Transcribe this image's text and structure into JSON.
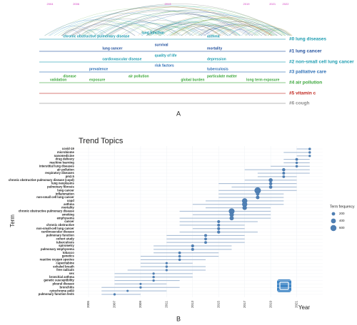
{
  "panels": [
    "A",
    "B"
  ],
  "chart_data": [
    {
      "type": "timeline",
      "xlim": [
        2004,
        2022
      ],
      "xticks": [
        2004,
        2006,
        2013,
        2019,
        2021,
        2022
      ],
      "clusters": [
        {
          "name": "#0 lung diseases",
          "color": "#1a9bb0",
          "keywords": [
            {
              "label": "chronic obstructive pulmonary disease",
              "year": 2005
            },
            {
              "label": "lung function",
              "year": 2011
            },
            {
              "label": "asthma",
              "year": 2016
            }
          ]
        },
        {
          "name": "#1 lung cancer",
          "color": "#1f4e9c",
          "keywords": [
            {
              "label": "lung cancer",
              "year": 2008
            },
            {
              "label": "survival",
              "year": 2012
            },
            {
              "label": "mortality",
              "year": 2016
            }
          ]
        },
        {
          "name": "#2 non-small cell lung cancer",
          "color": "#1a9bb0",
          "keywords": [
            {
              "label": "cardiovascular disease",
              "year": 2008
            },
            {
              "label": "quality of life",
              "year": 2012
            },
            {
              "label": "depression",
              "year": 2016
            }
          ]
        },
        {
          "name": "#3 palliative care",
          "color": "#2a6db5",
          "keywords": [
            {
              "label": "prevalence",
              "year": 2007
            },
            {
              "label": "risk factors",
              "year": 2012
            },
            {
              "label": "tuberculosis",
              "year": 2016
            }
          ]
        },
        {
          "name": "#4 air pollution",
          "color": "#3aa63a",
          "keywords": [
            {
              "label": "validation",
              "year": 2004
            },
            {
              "label": "disease",
              "year": 2005
            },
            {
              "label": "exposure",
              "year": 2007
            },
            {
              "label": "air pollution",
              "year": 2010
            },
            {
              "label": "global burden",
              "year": 2014
            },
            {
              "label": "particulate matter",
              "year": 2016
            },
            {
              "label": "long term exposure",
              "year": 2019
            }
          ]
        },
        {
          "name": "#5 vitamin c",
          "color": "#c0271f",
          "keywords": []
        },
        {
          "name": "#6 cough",
          "color": "#8c8c8c",
          "keywords": []
        }
      ]
    },
    {
      "type": "trend",
      "title": "Trend Topics",
      "x_label": "Year",
      "y_label": "Term",
      "xlim": [
        2004,
        2023
      ],
      "xticks": [
        2005,
        2007,
        2009,
        2011,
        2013,
        2015,
        2017,
        2019,
        2021
      ],
      "color": "#4f7fb3",
      "line_color": "#9fb6d0",
      "legend_title": "Term frequency",
      "legend_sizes": [
        200,
        400,
        600
      ],
      "categories": [
        "covid-19",
        "microbiome",
        "nanomedicine",
        "drug delivery",
        "machine learning",
        "interstitial lung diseases",
        "air pollution",
        "respiratory diseases",
        "pm2.5",
        "chronic obstructive pulmonary disease (copd)",
        "lung neoplasms",
        "pulmonary fibrosis",
        "lung cancer",
        "inflammation",
        "non-small cell lung cancer",
        "copd",
        "asthma",
        "mortality",
        "chronic obstructive pulmonary disease",
        "smoking",
        "emphysema",
        "cancer",
        "chronic obstructive",
        "non-small-cell lung cancer",
        "cardiovascular disease",
        "pulmonary function",
        "cohort study",
        "tuberculosis",
        "spirometry",
        "pulmonary emphysema",
        "tobacco",
        "genetics",
        "reactive oxygen species",
        "capecitabine",
        "exhaled breath",
        "free radicals",
        "sex",
        "bronchial asthma",
        "genetic susceptibility",
        "pleural disease",
        "bronchitis",
        "cytochrome p450",
        "pulmonary function tests"
      ],
      "median": [
        2022,
        2022,
        2022,
        2021,
        2021,
        2021,
        2020,
        2020,
        2020,
        2019,
        2019,
        2019,
        2018,
        2018,
        2018,
        2017,
        2017,
        2017,
        2016,
        2016,
        2016,
        2015,
        2015,
        2015,
        2015,
        2014,
        2014,
        2014,
        2013,
        2013,
        2012,
        2012,
        2012,
        2011,
        2011,
        2011,
        2010,
        2010,
        2010,
        2009,
        2009,
        2008,
        2007
      ],
      "q1": [
        2021,
        2020,
        2021,
        2020,
        2020,
        2019,
        2017,
        2018,
        2018,
        2017,
        2015,
        2016,
        2015,
        2015,
        2015,
        2014,
        2013,
        2014,
        2012,
        2013,
        2012,
        2012,
        2012,
        2013,
        2012,
        2011,
        2011,
        2011,
        2010,
        2010,
        2010,
        2009,
        2009,
        2009,
        2009,
        2008,
        2007,
        2007,
        2007,
        2007,
        2006,
        2006,
        2006
      ],
      "q3": [
        2022,
        2022,
        2022,
        2022,
        2022,
        2022,
        2022,
        2022,
        2021,
        2021,
        2021,
        2021,
        2021,
        2020,
        2020,
        2020,
        2020,
        2019,
        2019,
        2019,
        2019,
        2018,
        2017,
        2017,
        2018,
        2017,
        2017,
        2017,
        2016,
        2016,
        2015,
        2015,
        2014,
        2013,
        2014,
        2014,
        2013,
        2013,
        2012,
        2011,
        2012,
        2011,
        2009
      ],
      "frequency": [
        110,
        100,
        90,
        120,
        100,
        110,
        170,
        130,
        120,
        260,
        180,
        190,
        700,
        200,
        220,
        480,
        450,
        330,
        560,
        330,
        300,
        150,
        140,
        150,
        160,
        140,
        130,
        130,
        150,
        140,
        120,
        110,
        110,
        90,
        100,
        90,
        90,
        100,
        90,
        80,
        90,
        80,
        90
      ]
    }
  ]
}
